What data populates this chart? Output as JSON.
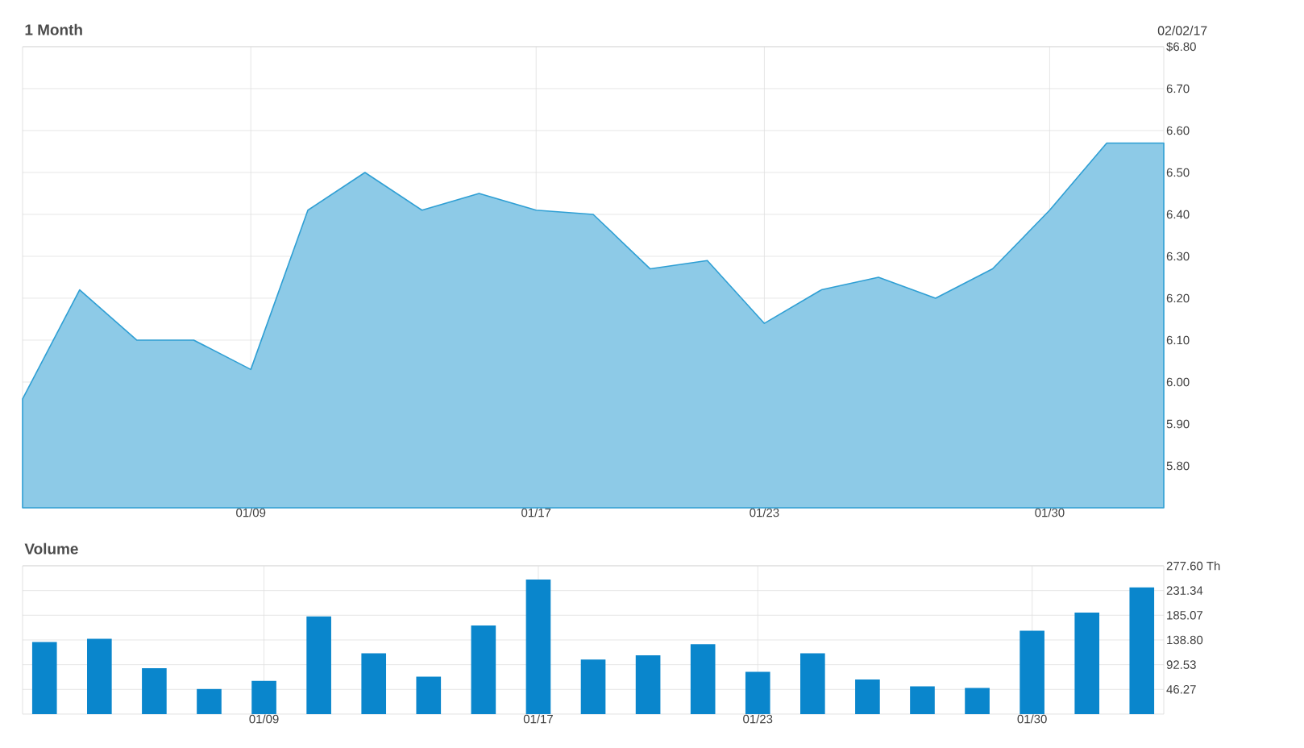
{
  "chart_data": [
    {
      "type": "area",
      "title": "1 Month",
      "annotations": [
        "02/02/17"
      ],
      "categories": [
        null,
        null,
        null,
        null,
        "01/09",
        null,
        null,
        null,
        null,
        "01/17",
        null,
        null,
        null,
        "01/23",
        null,
        null,
        null,
        null,
        "01/30",
        null,
        null
      ],
      "values": [
        5.96,
        6.22,
        6.1,
        6.1,
        6.03,
        6.41,
        6.5,
        6.41,
        6.45,
        6.41,
        6.4,
        6.27,
        6.29,
        6.14,
        6.22,
        6.25,
        6.2,
        6.27,
        6.41,
        6.57,
        6.57
      ],
      "color": "#2f9fd4",
      "ylim": [
        5.7,
        6.8
      ],
      "yticks": [
        {
          "value": 5.8,
          "label": "5.80"
        },
        {
          "value": 5.9,
          "label": "5.90"
        },
        {
          "value": 6.0,
          "label": "6.00"
        },
        {
          "value": 6.1,
          "label": "6.10"
        },
        {
          "value": 6.2,
          "label": "6.20"
        },
        {
          "value": 6.3,
          "label": "6.30"
        },
        {
          "value": 6.4,
          "label": "6.40"
        },
        {
          "value": 6.5,
          "label": "6.50"
        },
        {
          "value": 6.6,
          "label": "6.60"
        },
        {
          "value": 6.7,
          "label": "6.70"
        },
        {
          "value": 6.8,
          "label": "$6.80"
        }
      ],
      "grid": true
    },
    {
      "type": "bar",
      "title": "Volume",
      "categories": [
        null,
        null,
        null,
        null,
        "01/09",
        null,
        null,
        null,
        null,
        "01/17",
        null,
        null,
        null,
        "01/23",
        null,
        null,
        null,
        null,
        "01/30",
        null,
        null
      ],
      "values": [
        135,
        141,
        86,
        47,
        62,
        183,
        114,
        70,
        166,
        252,
        102,
        110,
        131,
        79,
        114,
        65,
        52,
        49,
        156,
        190,
        237
      ],
      "color": "#0a86cc",
      "ylim": [
        0,
        277.6
      ],
      "yticks": [
        46.27,
        92.53,
        {
          "value": 138.8,
          "label": "138.80"
        },
        185.07,
        231.34,
        {
          "value": 277.6,
          "label": "277.60 Th"
        }
      ],
      "grid": true
    }
  ]
}
